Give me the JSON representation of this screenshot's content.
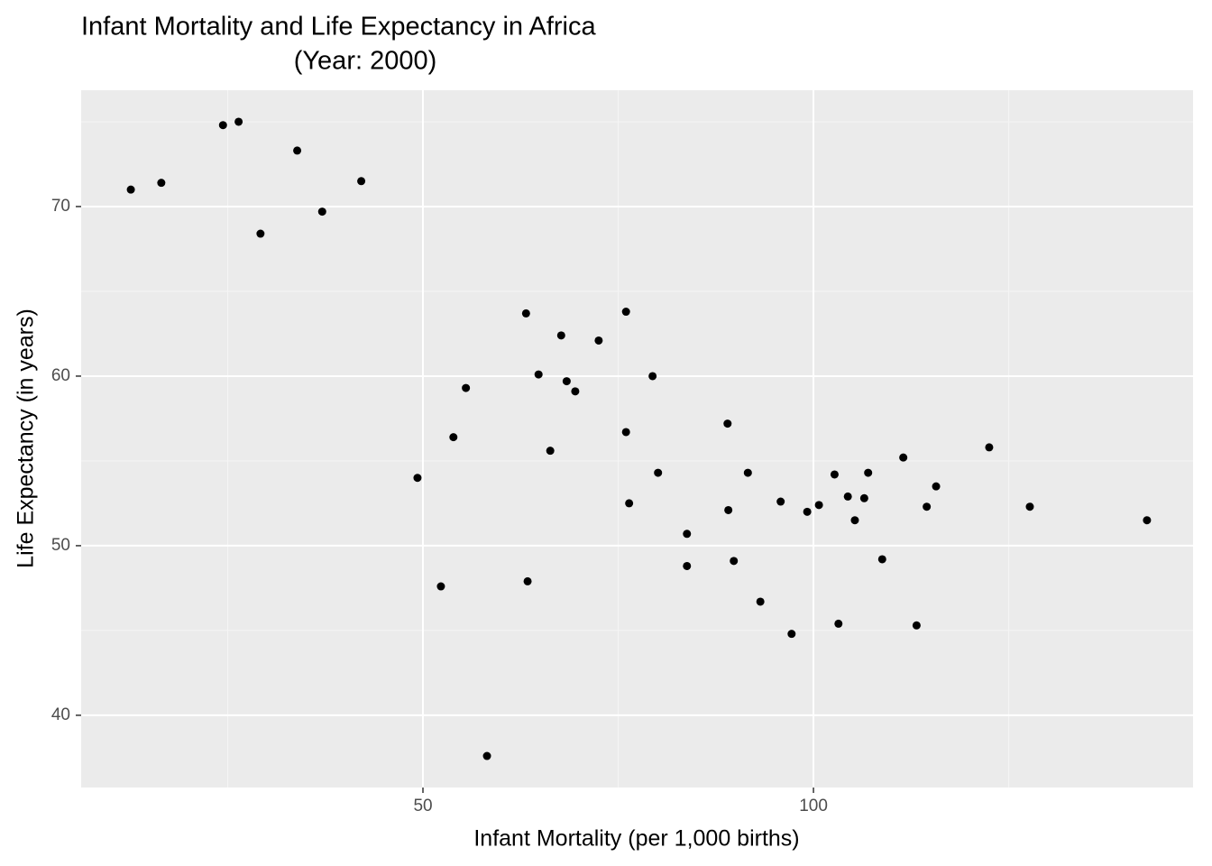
{
  "chart_data": {
    "type": "scatter",
    "title": "Infant Mortality and Life Expectancy in Africa",
    "subtitle": "(Year: 2000)",
    "x_label": "Infant Mortality (per 1,000 births)",
    "y_label": "Life Expectancy (in years)",
    "xlim": [
      6.24,
      148.6
    ],
    "ylim": [
      35.74,
      76.86
    ],
    "xticks": [
      50,
      100
    ],
    "yticks": [
      40,
      50,
      60,
      70
    ],
    "grid": true,
    "color": "#000000",
    "x": [
      12.6,
      16.5,
      24.4,
      26.4,
      33.9,
      29.2,
      37.1,
      42.1,
      49.3,
      52.3,
      53.9,
      55.5,
      58.2,
      63.2,
      63.4,
      64.8,
      66.3,
      67.7,
      68.4,
      69.5,
      72.5,
      76.0,
      76.0,
      76.4,
      79.4,
      80.1,
      83.8,
      83.8,
      89.0,
      89.1,
      89.8,
      91.6,
      93.2,
      95.8,
      97.2,
      99.2,
      100.7,
      102.7,
      103.2,
      104.4,
      105.3,
      106.5,
      107.0,
      108.8,
      111.5,
      113.2,
      114.5,
      115.7,
      122.5,
      127.7,
      142.7
    ],
    "values": [
      71.0,
      71.4,
      74.8,
      75.0,
      73.3,
      68.4,
      69.7,
      71.5,
      54.0,
      47.6,
      56.4,
      59.3,
      37.6,
      63.7,
      47.9,
      60.1,
      55.6,
      62.4,
      59.7,
      59.1,
      62.1,
      63.8,
      56.7,
      52.5,
      60.0,
      54.3,
      50.7,
      48.8,
      57.2,
      52.1,
      49.1,
      54.3,
      46.7,
      52.6,
      44.8,
      52.0,
      52.4,
      54.2,
      45.4,
      52.9,
      51.5,
      52.8,
      54.3,
      49.2,
      55.2,
      45.3,
      52.3,
      53.5,
      55.8,
      52.3,
      51.5
    ]
  }
}
